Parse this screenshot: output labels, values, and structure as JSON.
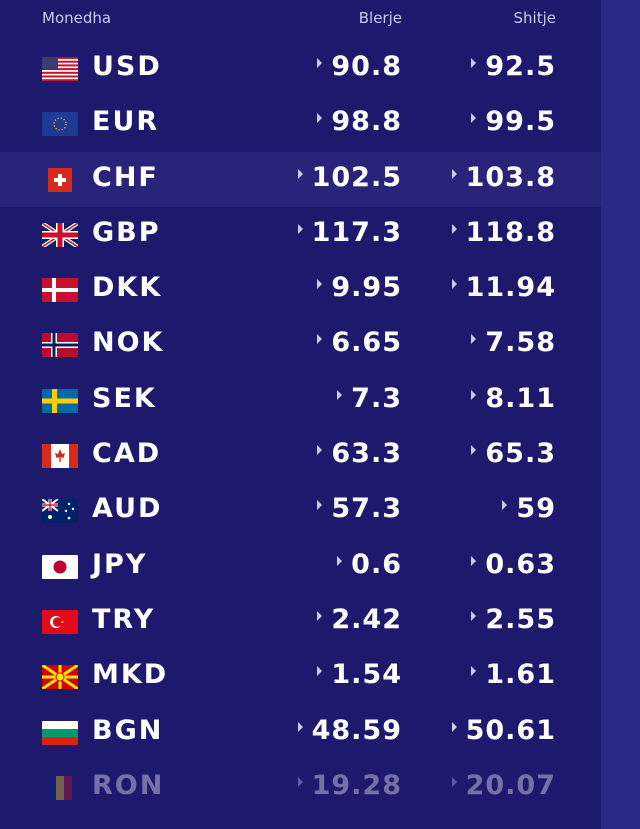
{
  "header": {
    "currency": "Monedha",
    "buy": "Blerje",
    "sell": "Shitje"
  },
  "rows": [
    {
      "code": "USD",
      "buy": "90.8",
      "sell": "92.5",
      "flag": "us-flag-icon"
    },
    {
      "code": "EUR",
      "buy": "98.8",
      "sell": "99.5",
      "flag": "eu-flag-icon"
    },
    {
      "code": "CHF",
      "buy": "102.5",
      "sell": "103.8",
      "flag": "ch-flag-icon"
    },
    {
      "code": "GBP",
      "buy": "117.3",
      "sell": "118.8",
      "flag": "gb-flag-icon"
    },
    {
      "code": "DKK",
      "buy": "9.95",
      "sell": "11.94",
      "flag": "dk-flag-icon"
    },
    {
      "code": "NOK",
      "buy": "6.65",
      "sell": "7.58",
      "flag": "no-flag-icon"
    },
    {
      "code": "SEK",
      "buy": "7.3",
      "sell": "8.11",
      "flag": "se-flag-icon"
    },
    {
      "code": "CAD",
      "buy": "63.3",
      "sell": "65.3",
      "flag": "ca-flag-icon"
    },
    {
      "code": "AUD",
      "buy": "57.3",
      "sell": "59",
      "flag": "au-flag-icon"
    },
    {
      "code": "JPY",
      "buy": "0.6",
      "sell": "0.63",
      "flag": "jp-flag-icon"
    },
    {
      "code": "TRY",
      "buy": "2.42",
      "sell": "2.55",
      "flag": "tr-flag-icon"
    },
    {
      "code": "MKD",
      "buy": "1.54",
      "sell": "1.61",
      "flag": "mk-flag-icon"
    },
    {
      "code": "BGN",
      "buy": "48.59",
      "sell": "50.61",
      "flag": "bg-flag-icon"
    },
    {
      "code": "RON",
      "buy": "19.28",
      "sell": "20.07",
      "flag": "ro-flag-icon"
    }
  ],
  "colors": {
    "background": "#1d1a6e",
    "highlight": "#27247a",
    "scrollbar": "#2b2987",
    "text": "#ffffff",
    "header_text": "#c9cbe8"
  }
}
